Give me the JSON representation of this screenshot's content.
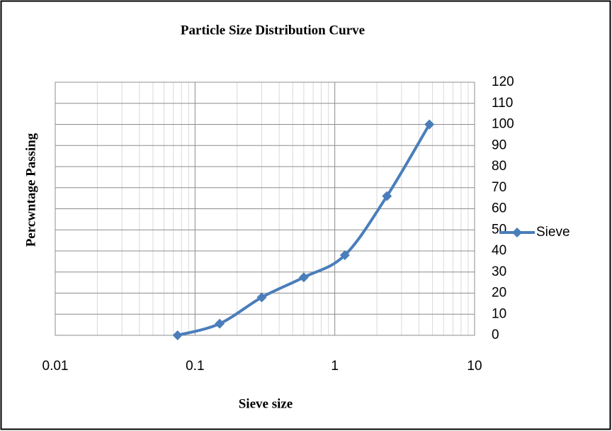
{
  "chart_data": {
    "type": "line",
    "title": "Particle Size Distribution Curve",
    "x_label": "Sieve size",
    "y_label": "Percwntage Passing",
    "x": [
      0.075,
      0.15,
      0.3,
      0.6,
      1.18,
      2.36,
      4.75
    ],
    "series": [
      {
        "name": "Sieve",
        "color": "#4a7ebb",
        "values": [
          0,
          5.5,
          18,
          27.5,
          38,
          66,
          100
        ]
      }
    ],
    "xlim": [
      0.01,
      10
    ],
    "xticks": [
      0.01,
      0.1,
      1,
      10
    ],
    "x_log": true,
    "ylim": [
      0,
      120
    ],
    "yticks": [
      0,
      10,
      20,
      30,
      40,
      50,
      60,
      70,
      80,
      90,
      100,
      110,
      120
    ],
    "y_axis_side": "right",
    "grid": true,
    "legend": "right",
    "smooth": true
  }
}
